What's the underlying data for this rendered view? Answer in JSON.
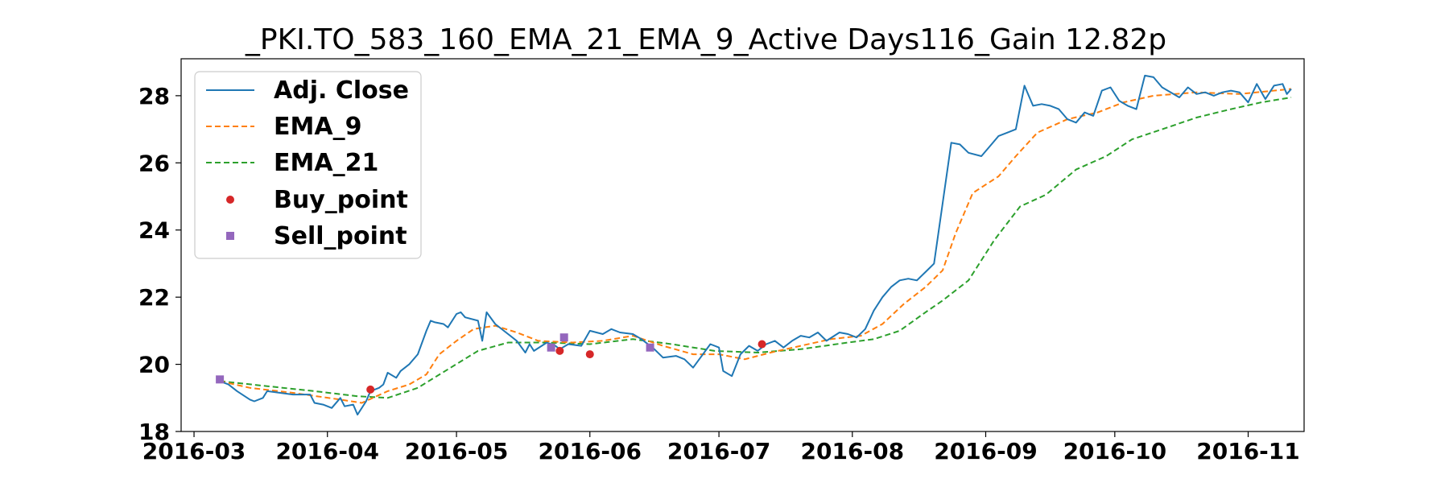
{
  "chart_data": {
    "type": "line",
    "title": "_PKI.TO_583_160_EMA_21_EMA_9_Active Days116_Gain  12.82p",
    "xlabel": "",
    "ylabel": "",
    "xlim": [
      "2016-02-27",
      "2016-11-14"
    ],
    "ylim": [
      18,
      29.1
    ],
    "x_ticks": [
      "2016-03",
      "2016-04",
      "2016-05",
      "2016-06",
      "2016-07",
      "2016-08",
      "2016-09",
      "2016-10",
      "2016-11"
    ],
    "y_ticks": [
      18,
      20,
      22,
      24,
      26,
      28
    ],
    "grid": false,
    "legend_position": "upper-left",
    "series": [
      {
        "name": "Adj. Close",
        "color": "#1f77b4",
        "style": "solid",
        "points": [
          [
            "2016-03-07",
            19.5
          ],
          [
            "2016-03-09",
            19.4
          ],
          [
            "2016-03-11",
            19.2
          ],
          [
            "2016-03-14",
            18.95
          ],
          [
            "2016-03-15",
            18.9
          ],
          [
            "2016-03-17",
            19.0
          ],
          [
            "2016-03-18",
            19.2
          ],
          [
            "2016-03-21",
            19.15
          ],
          [
            "2016-03-24",
            19.1
          ],
          [
            "2016-03-28",
            19.1
          ],
          [
            "2016-03-29",
            18.85
          ],
          [
            "2016-03-31",
            18.8
          ],
          [
            "2016-04-02",
            18.7
          ],
          [
            "2016-04-04",
            19.0
          ],
          [
            "2016-04-05",
            18.75
          ],
          [
            "2016-04-07",
            18.8
          ],
          [
            "2016-04-08",
            18.5
          ],
          [
            "2016-04-10",
            18.9
          ],
          [
            "2016-04-11",
            19.2
          ],
          [
            "2016-04-13",
            19.3
          ],
          [
            "2016-04-14",
            19.4
          ],
          [
            "2016-04-15",
            19.75
          ],
          [
            "2016-04-17",
            19.6
          ],
          [
            "2016-04-18",
            19.8
          ],
          [
            "2016-04-20",
            20.0
          ],
          [
            "2016-04-22",
            20.3
          ],
          [
            "2016-04-24",
            21.0
          ],
          [
            "2016-04-25",
            21.3
          ],
          [
            "2016-04-26",
            21.25
          ],
          [
            "2016-04-28",
            21.2
          ],
          [
            "2016-04-29",
            21.1
          ],
          [
            "2016-05-01",
            21.5
          ],
          [
            "2016-05-02",
            21.55
          ],
          [
            "2016-05-03",
            21.4
          ],
          [
            "2016-05-06",
            21.3
          ],
          [
            "2016-05-07",
            20.7
          ],
          [
            "2016-05-08",
            21.55
          ],
          [
            "2016-05-10",
            21.2
          ],
          [
            "2016-05-12",
            21.0
          ],
          [
            "2016-05-15",
            20.7
          ],
          [
            "2016-05-17",
            20.35
          ],
          [
            "2016-05-18",
            20.6
          ],
          [
            "2016-05-19",
            20.4
          ],
          [
            "2016-05-22",
            20.65
          ],
          [
            "2016-05-24",
            20.55
          ],
          [
            "2016-05-25",
            20.45
          ],
          [
            "2016-05-27",
            20.6
          ],
          [
            "2016-05-30",
            20.55
          ],
          [
            "2016-06-01",
            21.0
          ],
          [
            "2016-06-04",
            20.9
          ],
          [
            "2016-06-06",
            21.05
          ],
          [
            "2016-06-08",
            20.95
          ],
          [
            "2016-06-11",
            20.9
          ],
          [
            "2016-06-13",
            20.75
          ],
          [
            "2016-06-16",
            20.45
          ],
          [
            "2016-06-18",
            20.2
          ],
          [
            "2016-06-21",
            20.25
          ],
          [
            "2016-06-23",
            20.15
          ],
          [
            "2016-06-25",
            19.9
          ],
          [
            "2016-06-29",
            20.6
          ],
          [
            "2016-07-01",
            20.5
          ],
          [
            "2016-07-02",
            19.8
          ],
          [
            "2016-07-04",
            19.65
          ],
          [
            "2016-07-06",
            20.3
          ],
          [
            "2016-07-08",
            20.55
          ],
          [
            "2016-07-10",
            20.4
          ],
          [
            "2016-07-12",
            20.6
          ],
          [
            "2016-07-14",
            20.7
          ],
          [
            "2016-07-16",
            20.5
          ],
          [
            "2016-07-18",
            20.7
          ],
          [
            "2016-07-20",
            20.85
          ],
          [
            "2016-07-22",
            20.8
          ],
          [
            "2016-07-24",
            20.95
          ],
          [
            "2016-07-26",
            20.7
          ],
          [
            "2016-07-29",
            20.95
          ],
          [
            "2016-07-31",
            20.9
          ],
          [
            "2016-08-02",
            20.8
          ],
          [
            "2016-08-04",
            21.05
          ],
          [
            "2016-08-06",
            21.6
          ],
          [
            "2016-08-08",
            22.0
          ],
          [
            "2016-08-10",
            22.3
          ],
          [
            "2016-08-12",
            22.5
          ],
          [
            "2016-08-14",
            22.55
          ],
          [
            "2016-08-16",
            22.5
          ],
          [
            "2016-08-18",
            22.75
          ],
          [
            "2016-08-20",
            23.0
          ],
          [
            "2016-08-22",
            24.8
          ],
          [
            "2016-08-24",
            26.6
          ],
          [
            "2016-08-26",
            26.55
          ],
          [
            "2016-08-28",
            26.3
          ],
          [
            "2016-08-31",
            26.2
          ],
          [
            "2016-09-02",
            26.5
          ],
          [
            "2016-09-04",
            26.8
          ],
          [
            "2016-09-06",
            26.9
          ],
          [
            "2016-09-08",
            27.0
          ],
          [
            "2016-09-10",
            28.3
          ],
          [
            "2016-09-12",
            27.7
          ],
          [
            "2016-09-14",
            27.75
          ],
          [
            "2016-09-16",
            27.7
          ],
          [
            "2016-09-18",
            27.6
          ],
          [
            "2016-09-20",
            27.3
          ],
          [
            "2016-09-22",
            27.2
          ],
          [
            "2016-09-24",
            27.5
          ],
          [
            "2016-09-26",
            27.4
          ],
          [
            "2016-09-28",
            28.15
          ],
          [
            "2016-09-30",
            28.25
          ],
          [
            "2016-10-02",
            27.85
          ],
          [
            "2016-10-04",
            27.7
          ],
          [
            "2016-10-06",
            27.6
          ],
          [
            "2016-10-08",
            28.6
          ],
          [
            "2016-10-10",
            28.55
          ],
          [
            "2016-10-12",
            28.25
          ],
          [
            "2016-10-14",
            28.1
          ],
          [
            "2016-10-16",
            27.95
          ],
          [
            "2016-10-18",
            28.25
          ],
          [
            "2016-10-20",
            28.05
          ],
          [
            "2016-10-22",
            28.1
          ],
          [
            "2016-10-24",
            28.0
          ],
          [
            "2016-10-26",
            28.1
          ],
          [
            "2016-10-28",
            28.15
          ],
          [
            "2016-10-30",
            28.1
          ],
          [
            "2016-11-01",
            27.8
          ],
          [
            "2016-11-03",
            28.35
          ],
          [
            "2016-11-05",
            27.9
          ],
          [
            "2016-11-07",
            28.3
          ],
          [
            "2016-11-09",
            28.35
          ],
          [
            "2016-11-10",
            28.05
          ],
          [
            "2016-11-11",
            28.2
          ]
        ]
      },
      {
        "name": "EMA_9",
        "color": "#ff7f0e",
        "style": "dashed",
        "points": [
          [
            "2016-03-07",
            19.5
          ],
          [
            "2016-03-14",
            19.3
          ],
          [
            "2016-03-24",
            19.15
          ],
          [
            "2016-04-04",
            18.95
          ],
          [
            "2016-04-09",
            18.85
          ],
          [
            "2016-04-15",
            19.2
          ],
          [
            "2016-04-20",
            19.4
          ],
          [
            "2016-04-24",
            19.7
          ],
          [
            "2016-04-27",
            20.3
          ],
          [
            "2016-05-01",
            20.7
          ],
          [
            "2016-05-05",
            21.05
          ],
          [
            "2016-05-10",
            21.15
          ],
          [
            "2016-05-15",
            20.95
          ],
          [
            "2016-05-20",
            20.7
          ],
          [
            "2016-05-28",
            20.65
          ],
          [
            "2016-06-04",
            20.7
          ],
          [
            "2016-06-11",
            20.85
          ],
          [
            "2016-06-18",
            20.55
          ],
          [
            "2016-06-25",
            20.3
          ],
          [
            "2016-07-01",
            20.3
          ],
          [
            "2016-07-07",
            20.15
          ],
          [
            "2016-07-13",
            20.35
          ],
          [
            "2016-07-20",
            20.55
          ],
          [
            "2016-07-27",
            20.75
          ],
          [
            "2016-08-03",
            20.85
          ],
          [
            "2016-08-08",
            21.2
          ],
          [
            "2016-08-13",
            21.8
          ],
          [
            "2016-08-18",
            22.3
          ],
          [
            "2016-08-22",
            22.8
          ],
          [
            "2016-08-25",
            23.9
          ],
          [
            "2016-08-29",
            25.1
          ],
          [
            "2016-09-04",
            25.6
          ],
          [
            "2016-09-08",
            26.2
          ],
          [
            "2016-09-13",
            26.9
          ],
          [
            "2016-09-20",
            27.3
          ],
          [
            "2016-09-27",
            27.5
          ],
          [
            "2016-10-03",
            27.8
          ],
          [
            "2016-10-10",
            28.0
          ],
          [
            "2016-10-20",
            28.1
          ],
          [
            "2016-10-30",
            28.05
          ],
          [
            "2016-11-11",
            28.2
          ]
        ]
      },
      {
        "name": "EMA_21",
        "color": "#2ca02c",
        "style": "dashed",
        "points": [
          [
            "2016-03-07",
            19.5
          ],
          [
            "2016-03-18",
            19.35
          ],
          [
            "2016-03-29",
            19.2
          ],
          [
            "2016-04-08",
            19.05
          ],
          [
            "2016-04-15",
            19.0
          ],
          [
            "2016-04-22",
            19.3
          ],
          [
            "2016-04-29",
            19.85
          ],
          [
            "2016-05-06",
            20.4
          ],
          [
            "2016-05-13",
            20.65
          ],
          [
            "2016-05-22",
            20.65
          ],
          [
            "2016-06-01",
            20.6
          ],
          [
            "2016-06-11",
            20.75
          ],
          [
            "2016-06-20",
            20.6
          ],
          [
            "2016-06-30",
            20.4
          ],
          [
            "2016-07-10",
            20.35
          ],
          [
            "2016-07-20",
            20.45
          ],
          [
            "2016-07-31",
            20.65
          ],
          [
            "2016-08-06",
            20.75
          ],
          [
            "2016-08-12",
            21.0
          ],
          [
            "2016-08-18",
            21.55
          ],
          [
            "2016-08-22",
            21.9
          ],
          [
            "2016-08-28",
            22.5
          ],
          [
            "2016-09-03",
            23.7
          ],
          [
            "2016-09-09",
            24.7
          ],
          [
            "2016-09-15",
            25.05
          ],
          [
            "2016-09-22",
            25.8
          ],
          [
            "2016-09-29",
            26.2
          ],
          [
            "2016-10-05",
            26.7
          ],
          [
            "2016-10-12",
            27.0
          ],
          [
            "2016-10-20",
            27.35
          ],
          [
            "2016-10-28",
            27.6
          ],
          [
            "2016-11-04",
            27.8
          ],
          [
            "2016-11-11",
            27.95
          ]
        ]
      }
    ],
    "buy_points": {
      "name": "Buy_point",
      "color": "#d62728",
      "marker": "circle",
      "points": [
        [
          "2016-04-11",
          19.25
        ],
        [
          "2016-05-25",
          20.4
        ],
        [
          "2016-06-01",
          20.3
        ],
        [
          "2016-07-11",
          20.6
        ]
      ]
    },
    "sell_points": {
      "name": "Sell_point",
      "color": "#9467bd",
      "marker": "square",
      "points": [
        [
          "2016-03-07",
          19.55
        ],
        [
          "2016-05-23",
          20.5
        ],
        [
          "2016-05-26",
          20.8
        ],
        [
          "2016-06-15",
          20.5
        ]
      ]
    }
  }
}
